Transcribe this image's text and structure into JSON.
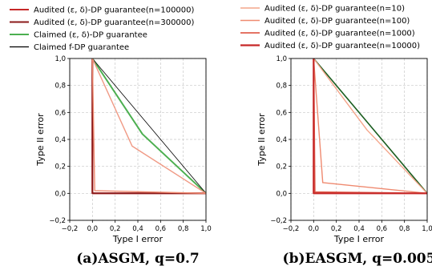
{
  "chart_data": [
    {
      "type": "line",
      "caption": "(a)ASGM, q=0.7",
      "xlabel": "Type I error",
      "ylabel": "Type II error",
      "xlim": [
        -0.2,
        1.0
      ],
      "ylim": [
        -0.2,
        1.0
      ],
      "xticks": [
        "−0,2",
        "0,0",
        "0,2",
        "0,4",
        "0,6",
        "0,8",
        "1,0"
      ],
      "yticks": [
        "−0,2",
        "0,0",
        "0,2",
        "0,4",
        "0,6",
        "0,8",
        "1,0"
      ],
      "grid": true,
      "legend_position": "top",
      "series": [
        {
          "name": "Audited (ε, δ)-DP guarantee(n=100000)",
          "color": "#c62828",
          "width": 2,
          "x": [
            0,
            0,
            1
          ],
          "y": [
            1,
            0,
            0
          ]
        },
        {
          "name": "Audited (ε, δ)-DP guarantee(n=300000)",
          "color": "#8b1a1a",
          "width": 2,
          "x": [
            0,
            0,
            1
          ],
          "y": [
            1,
            0,
            0
          ]
        },
        {
          "name": "Claimed (ε, δ)-DP guarantee",
          "color": "#4caf50",
          "width": 2,
          "x": [
            0,
            0.44,
            1
          ],
          "y": [
            1,
            0.44,
            0
          ]
        },
        {
          "name": "Claimed f-DP guarantee",
          "color": "#000000",
          "width": 0.8,
          "x": [
            0,
            1
          ],
          "y": [
            1,
            0
          ]
        },
        {
          "name": "",
          "color": "#f09a85",
          "width": 1.4,
          "x": [
            0,
            0.35,
            1
          ],
          "y": [
            1,
            0.35,
            0
          ]
        },
        {
          "name": "",
          "color": "#ef8a70",
          "width": 1.4,
          "x": [
            0,
            0.02,
            1
          ],
          "y": [
            1,
            0.02,
            0
          ]
        }
      ]
    },
    {
      "type": "line",
      "caption": "(b)EASGM, q=0.005",
      "xlabel": "Type I error",
      "ylabel": "Type II error",
      "xlim": [
        -0.2,
        1.0
      ],
      "ylim": [
        -0.2,
        1.0
      ],
      "xticks": [
        "−0,2",
        "0,0",
        "0,2",
        "0,4",
        "0,6",
        "0,8",
        "1,0"
      ],
      "yticks": [
        "−0,2",
        "0,0",
        "0,2",
        "0,4",
        "0,6",
        "0,8",
        "1,0"
      ],
      "grid": true,
      "legend_position": "top",
      "series": [
        {
          "name": "",
          "color": "#000000",
          "width": 0.8,
          "x": [
            0,
            1
          ],
          "y": [
            1,
            0
          ]
        },
        {
          "name": "",
          "color": "#1b5e20",
          "width": 1.6,
          "x": [
            0,
            1
          ],
          "y": [
            1,
            0
          ]
        },
        {
          "name": "Audited (ε, δ)-DP guarantee(n=10)",
          "color": "#f4a58a",
          "width": 1.4,
          "x": [
            0,
            0.47,
            1
          ],
          "y": [
            1,
            0.47,
            0
          ]
        },
        {
          "name": "Audited (ε, δ)-DP guarantee(n=100)",
          "color": "#ef8a70",
          "width": 1.4,
          "x": [
            0,
            0.08,
            1
          ],
          "y": [
            1,
            0.08,
            0
          ]
        },
        {
          "name": "Audited (ε, δ)-DP guarantee(n=1000)",
          "color": "#e0614f",
          "width": 1.8,
          "x": [
            0,
            0.01,
            1
          ],
          "y": [
            1,
            0.01,
            0
          ]
        },
        {
          "name": "Audited (ε, δ)-DP guarantee(n=10000)",
          "color": "#c62828",
          "width": 2.2,
          "x": [
            0,
            0,
            1
          ],
          "y": [
            1,
            0,
            0
          ]
        }
      ]
    }
  ]
}
